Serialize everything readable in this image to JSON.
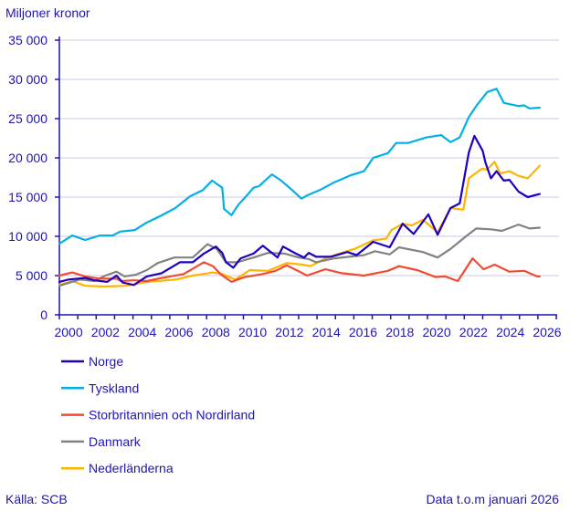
{
  "chart_data": {
    "type": "line",
    "ylabel": "Miljoner kronor",
    "ylim": [
      0,
      35000
    ],
    "yticks": [
      0,
      5000,
      10000,
      15000,
      20000,
      25000,
      30000,
      35000
    ],
    "ytick_labels": [
      "0",
      "5 000",
      "10 000",
      "15 000",
      "20 000",
      "25 000",
      "30 000",
      "35 000"
    ],
    "xlim": [
      2000,
      2027.1
    ],
    "xtick_labels": [
      "2000",
      "2002",
      "2004",
      "2006",
      "2008",
      "2010",
      "2012",
      "2014",
      "2016",
      "2018",
      "2020",
      "2022",
      "2024",
      "2026"
    ],
    "grid": true,
    "legend_placement": "bottom",
    "series": [
      {
        "name": "Norge",
        "color": "#1e00be",
        "x": [
          2000.0,
          2000.5,
          2001.4,
          2001.9,
          2002.6,
          2003.1,
          2003.45,
          2004.05,
          2004.75,
          2005.55,
          2006.55,
          2007.25,
          2007.85,
          2008.5,
          2008.85,
          2009.05,
          2009.45,
          2009.85,
          2010.55,
          2011.05,
          2011.55,
          2011.85,
          2012.15,
          2012.85,
          2013.3,
          2013.55,
          2013.95,
          2014.75,
          2015.65,
          2016.15,
          2017.05,
          2017.95,
          2018.65,
          2019.25,
          2020.05,
          2020.55,
          2021.25,
          2021.75,
          2022.25,
          2022.55,
          2023.0,
          2023.15,
          2023.45,
          2023.75,
          2024.15,
          2024.45,
          2024.95,
          2025.45,
          2026.1
        ],
        "y": [
          4200,
          4500,
          4700,
          4400,
          4200,
          5000,
          4100,
          3800,
          4900,
          5300,
          6700,
          6700,
          7800,
          8700,
          7900,
          6700,
          6000,
          7200,
          7800,
          8800,
          7900,
          7300,
          8700,
          7800,
          7300,
          7900,
          7400,
          7400,
          8000,
          7600,
          9300,
          8600,
          11600,
          10300,
          12800,
          10200,
          13600,
          14200,
          20700,
          22800,
          20900,
          19400,
          17400,
          18300,
          17100,
          17200,
          15700,
          15000,
          15400
        ]
      },
      {
        "name": "Tyskland",
        "color": "#00b0e6",
        "x": [
          2000.0,
          2000.7,
          2001.4,
          2002.2,
          2002.9,
          2003.3,
          2004.1,
          2004.7,
          2005.5,
          2006.3,
          2007.1,
          2007.8,
          2008.3,
          2008.85,
          2008.95,
          2009.35,
          2009.75,
          2010.15,
          2010.55,
          2010.85,
          2011.55,
          2012.05,
          2012.65,
          2013.15,
          2013.45,
          2014.15,
          2014.95,
          2015.85,
          2016.55,
          2017.05,
          2017.85,
          2018.3,
          2018.95,
          2019.95,
          2020.75,
          2021.25,
          2021.75,
          2022.25,
          2022.65,
          2023.25,
          2023.75,
          2024.15,
          2024.95,
          2025.25,
          2025.55,
          2026.1
        ],
        "y": [
          9070,
          10100,
          9530,
          10100,
          10100,
          10600,
          10800,
          11700,
          12600,
          13600,
          15100,
          15900,
          17100,
          16200,
          13500,
          12700,
          14100,
          15100,
          16200,
          16400,
          17900,
          17100,
          15900,
          14800,
          15200,
          15900,
          16900,
          17800,
          18300,
          20000,
          20600,
          21900,
          21900,
          22600,
          22900,
          22000,
          22600,
          25200,
          26600,
          28400,
          28800,
          27000,
          26600,
          26700,
          26300,
          26400
        ]
      },
      {
        "name": "Storbritannien och Nordirland",
        "color": "#f04b32",
        "x": [
          2000.0,
          2000.7,
          2001.4,
          2002.2,
          2003.1,
          2003.35,
          2004.05,
          2004.75,
          2005.35,
          2006.75,
          2007.85,
          2008.35,
          2008.75,
          2009.35,
          2010.05,
          2011.05,
          2011.75,
          2012.35,
          2013.05,
          2013.45,
          2014.45,
          2015.35,
          2016.55,
          2017.85,
          2018.45,
          2019.45,
          2020.45,
          2020.95,
          2021.65,
          2021.95,
          2022.45,
          2023.05,
          2023.65,
          2024.45,
          2025.25,
          2025.95,
          2026.1
        ],
        "y": [
          5000,
          5400,
          4900,
          4600,
          4600,
          4300,
          4400,
          4300,
          4600,
          5200,
          6700,
          6200,
          5200,
          4200,
          4800,
          5200,
          5600,
          6300,
          5500,
          5000,
          5800,
          5300,
          5000,
          5600,
          6200,
          5700,
          4800,
          4900,
          4300,
          5400,
          7200,
          5800,
          6400,
          5500,
          5600,
          4900,
          4900
        ]
      },
      {
        "name": "Danmark",
        "color": "#828282",
        "x": [
          2000.0,
          2001.1,
          2001.9,
          2002.5,
          2003.1,
          2003.55,
          2004.15,
          2004.75,
          2005.35,
          2006.25,
          2007.25,
          2008.05,
          2008.55,
          2009.05,
          2009.65,
          2010.55,
          2011.35,
          2012.25,
          2013.0,
          2013.55,
          2013.95,
          2014.95,
          2016.55,
          2017.15,
          2017.95,
          2018.45,
          2019.75,
          2020.55,
          2021.25,
          2022.15,
          2022.65,
          2023.45,
          2024.05,
          2024.95,
          2025.55,
          2026.1
        ],
        "y": [
          3700,
          4500,
          4300,
          5000,
          5500,
          4900,
          5100,
          5700,
          6600,
          7300,
          7300,
          9000,
          8400,
          6700,
          6700,
          7300,
          7900,
          7800,
          7300,
          7100,
          6700,
          7200,
          7600,
          8100,
          7700,
          8600,
          8000,
          7300,
          8400,
          10100,
          11000,
          10900,
          10700,
          11500,
          11000,
          11100
        ]
      },
      {
        "name": "Nederländerna",
        "color": "#ffb400",
        "x": [
          2000.0,
          2000.7,
          2001.4,
          2002.4,
          2003.65,
          2004.75,
          2006.35,
          2007.25,
          2008.35,
          2008.85,
          2009.55,
          2010.35,
          2011.35,
          2012.35,
          2013.2,
          2013.65,
          2014.45,
          2015.35,
          2016.15,
          2017.05,
          2017.75,
          2018.05,
          2018.65,
          2019.15,
          2019.75,
          2020.55,
          2021.25,
          2021.95,
          2022.25,
          2022.95,
          2023.25,
          2023.65,
          2023.95,
          2024.45,
          2024.95,
          2025.45,
          2026.1
        ],
        "y": [
          3800,
          4300,
          3700,
          3600,
          3700,
          4200,
          4500,
          5000,
          5400,
          5200,
          4500,
          5700,
          5600,
          6600,
          6400,
          6200,
          7200,
          7900,
          8500,
          9500,
          9700,
          10800,
          11600,
          11400,
          12100,
          10500,
          13600,
          13400,
          17400,
          18600,
          18500,
          19500,
          18000,
          18300,
          17700,
          17400,
          19000
        ]
      }
    ]
  },
  "footer": {
    "source": "Källa: SCB",
    "data_note": "Data t.o.m januari 2026"
  }
}
